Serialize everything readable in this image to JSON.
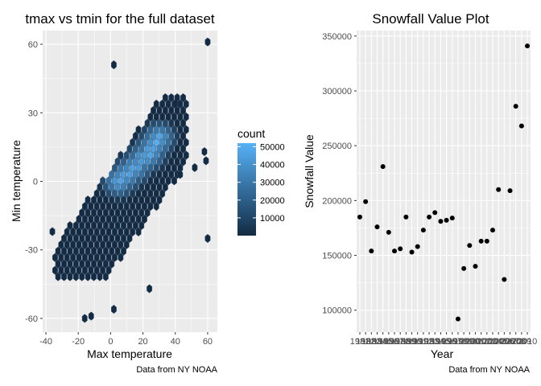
{
  "charts": [
    {
      "type": "heatmap",
      "subtype": "hexbin",
      "title": "tmax vs tmin for the full dataset",
      "xlabel": "Max temperature",
      "ylabel": "Min temperature",
      "caption": "Data from NY NOAA",
      "xlim": [
        -42,
        66
      ],
      "ylim": [
        -66,
        66
      ],
      "x_ticks": [
        -40,
        -20,
        0,
        20,
        40,
        60
      ],
      "y_ticks": [
        -60,
        -30,
        0,
        30,
        60
      ],
      "grid": true,
      "colors": {
        "panel": "#EBEBEB",
        "grid": "#FFFFFF",
        "low": "#132B43",
        "high": "#56B1F7",
        "outline": "#3B4F66"
      },
      "legend": {
        "title": "count",
        "placement": "right",
        "min": 1,
        "max": 52000,
        "breaks": [
          10000,
          20000,
          30000,
          40000,
          50000
        ],
        "labels": [
          "10000",
          "20000",
          "30000",
          "40000",
          "50000"
        ]
      }
    },
    {
      "type": "scatter",
      "title": "Snowfall Value Plot",
      "xlabel": "Year",
      "ylabel": "Snowfall Value",
      "caption": "Data from NY NOAA",
      "xlim": [
        1980.45,
        2010.55
      ],
      "ylim": [
        80000,
        355000
      ],
      "y_ticks": [
        100000,
        150000,
        200000,
        250000,
        300000,
        350000
      ],
      "y_tick_labels": [
        "100000",
        "150000",
        "200000",
        "250000",
        "300000",
        "350000"
      ],
      "x_ticks": [
        1981,
        1982,
        1983,
        1984,
        1985,
        1986,
        1987,
        1988,
        1989,
        1990,
        1991,
        1992,
        1993,
        1994,
        1995,
        1996,
        1997,
        1998,
        1999,
        2000,
        2001,
        2002,
        2003,
        2004,
        2005,
        2006,
        2007,
        2008,
        2009,
        2010
      ],
      "grid": true,
      "colors": {
        "panel": "#EBEBEB",
        "grid": "#FFFFFF",
        "point": "#000000"
      },
      "x": [
        1981,
        1982,
        1983,
        1984,
        1985,
        1986,
        1987,
        1988,
        1989,
        1990,
        1991,
        1992,
        1993,
        1994,
        1995,
        1996,
        1997,
        1998,
        1999,
        2000,
        2001,
        2002,
        2003,
        2004,
        2005,
        2006,
        2007,
        2008,
        2009,
        2010
      ],
      "y": [
        185000,
        199000,
        154000,
        176000,
        231000,
        171000,
        154000,
        156000,
        185000,
        153000,
        158000,
        173000,
        185000,
        189000,
        181000,
        182000,
        184000,
        92000,
        138000,
        159000,
        140000,
        163000,
        163000,
        173000,
        210000,
        128000,
        209000,
        286000,
        268000,
        341000
      ]
    }
  ]
}
